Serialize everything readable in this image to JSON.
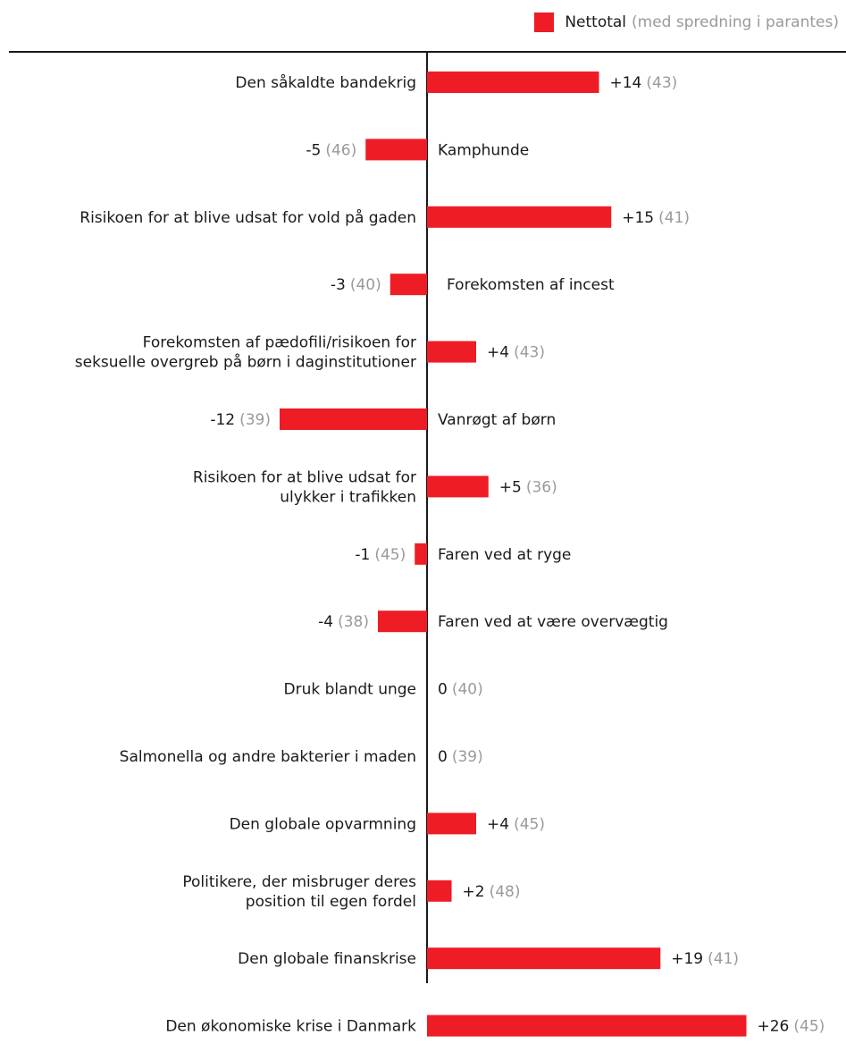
{
  "legend": {
    "series_name": "Nettotal",
    "note": "(med spredning i parantes)",
    "color": "#ee1c25"
  },
  "chart_data": {
    "type": "bar",
    "orientation": "horizontal",
    "series": [
      {
        "name": "Nettotal",
        "color": "#ee1c25"
      }
    ],
    "categories": [
      "Den såkaldte bandekrig",
      "Kamphunde",
      "Risikoen for at blive udsat for vold på gaden",
      "Forekomsten af incest",
      "Forekomsten af pædofili/risikoen for seksuelle overgreb på børn i daginstitutioner",
      "Vanrøgt af børn",
      "Risikoen for at blive udsat for ulykker i trafikken",
      "Faren ved at ryge",
      "Faren ved at være overvægtig",
      "Druk blandt unge",
      "Salmonella og andre bakterier i maden",
      "Den globale opvarmning",
      "Politikere, der misbruger deres position til egen fordel",
      "Den globale finanskrise",
      "Den økonomiske krise i Danmark"
    ],
    "category_lines": [
      [
        "Den såkaldte bandekrig"
      ],
      [
        "Kamphunde"
      ],
      [
        "Risikoen for at blive udsat for vold på gaden"
      ],
      [
        "Forekomsten af incest"
      ],
      [
        "Forekomsten af pædofili/risikoen for",
        "seksuelle overgreb på børn i daginstitutioner"
      ],
      [
        "Vanrøgt af børn"
      ],
      [
        "Risikoen for at blive udsat for",
        "ulykker i trafikken"
      ],
      [
        "Faren ved at ryge"
      ],
      [
        "Faren ved at være overvægtig"
      ],
      [
        "Druk blandt unge"
      ],
      [
        "Salmonella og andre bakterier i maden"
      ],
      [
        "Den globale opvarmning"
      ],
      [
        "Politikere, der misbruger deres",
        "position til egen fordel"
      ],
      [
        "Den globale finanskrise"
      ],
      [
        "Den økonomiske krise i Danmark"
      ]
    ],
    "values": [
      14,
      -5,
      15,
      -3,
      4,
      -12,
      5,
      -1,
      -4,
      0,
      0,
      4,
      2,
      19,
      26
    ],
    "value_labels": [
      "+14",
      "-5",
      "+15",
      "-3",
      "+4",
      "-12",
      "+5",
      "-1",
      "-4",
      "0",
      "0",
      "+4",
      "+2",
      "+19",
      "+26"
    ],
    "spread": [
      43,
      46,
      41,
      40,
      43,
      39,
      36,
      45,
      38,
      40,
      39,
      45,
      48,
      41,
      45
    ],
    "spread_labels": [
      "(43)",
      "(46)",
      "(41)",
      "(40)",
      "(43)",
      "(39)",
      "(36)",
      "(45)",
      "(38)",
      "(40)",
      "(39)",
      "(45)",
      "(48)",
      "(41)",
      "(45)"
    ],
    "xlim": [
      -13,
      26
    ],
    "grid": false,
    "legend_position": "top-right"
  }
}
